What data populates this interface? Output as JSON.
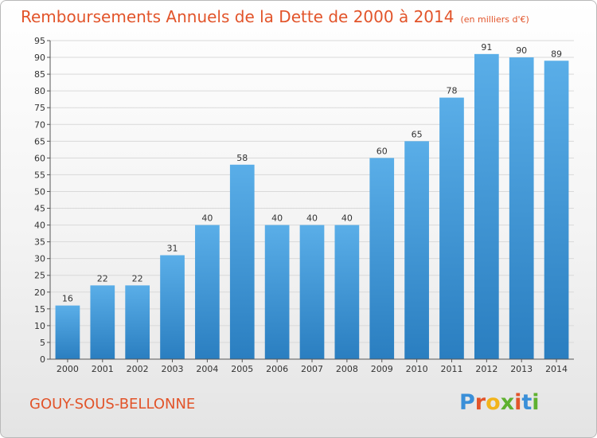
{
  "header": {
    "title": "Remboursements Annuels de la Dette de 2000 à 2014",
    "unit": "(en milliers d'€)"
  },
  "footer": {
    "city": "GOUY-SOUS-BELLONNE",
    "logo_letters": [
      "P",
      "r",
      "o",
      "x",
      "i",
      "t",
      "i"
    ],
    "logo_colors": [
      "#3a8fd8",
      "#e2542a",
      "#f2b41b",
      "#5fb130",
      "#e2542a",
      "#3a8fd8",
      "#5fb130"
    ]
  },
  "colors": {
    "bar_light": "#5aaee8",
    "bar_dark": "#2a7ec0",
    "title": "#e2542a"
  },
  "chart_data": {
    "type": "bar",
    "title": "Remboursements Annuels de la Dette de 2000 à 2014",
    "subtitle": "(en milliers d'€)",
    "xlabel": "",
    "ylabel": "",
    "categories": [
      "2000",
      "2001",
      "2002",
      "2003",
      "2004",
      "2005",
      "2006",
      "2007",
      "2008",
      "2009",
      "2010",
      "2011",
      "2012",
      "2013",
      "2014"
    ],
    "values": [
      16,
      22,
      22,
      31,
      40,
      58,
      40,
      40,
      40,
      60,
      65,
      78,
      91,
      90,
      89
    ],
    "ylim": [
      0,
      95
    ],
    "yticks": [
      0,
      5,
      10,
      15,
      20,
      25,
      30,
      35,
      40,
      45,
      50,
      55,
      60,
      65,
      70,
      75,
      80,
      85,
      90,
      95
    ],
    "grid": true,
    "data_labels": true
  }
}
